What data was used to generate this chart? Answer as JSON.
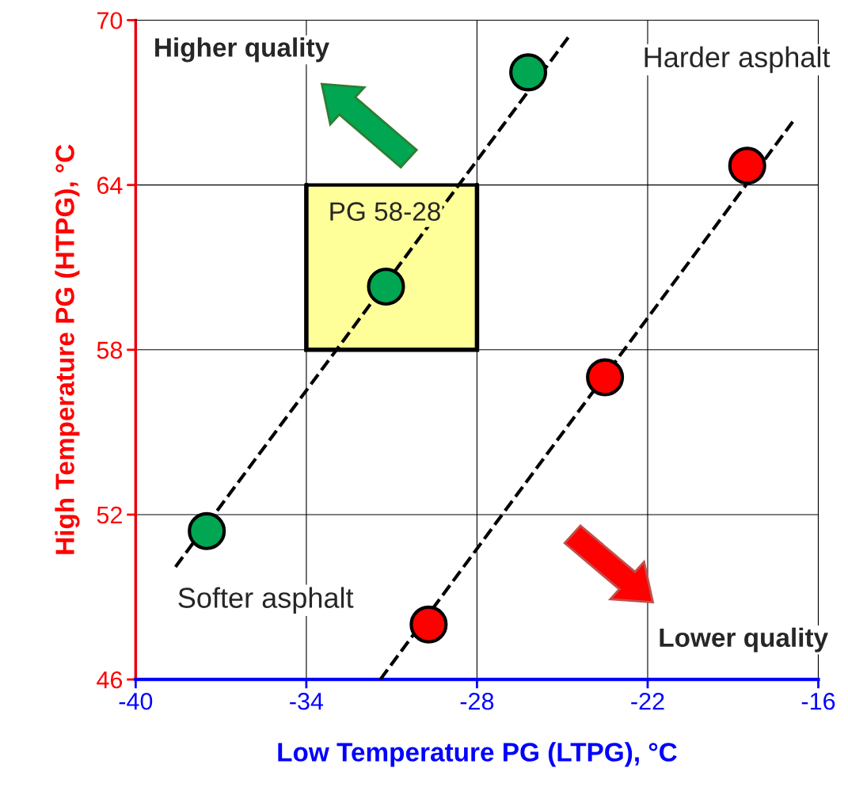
{
  "chart_data": {
    "type": "scatter",
    "xlabel": "Low Temperature PG (LTPG), °C",
    "ylabel": "High Temperature PG (HTPG), °C",
    "xlim": [
      -40,
      -16
    ],
    "xticks": [
      -40,
      -34,
      -28,
      -22,
      -16
    ],
    "ylim": [
      46,
      70
    ],
    "yticks": [
      46,
      52,
      58,
      64,
      70
    ],
    "grid": true,
    "marker": "circle",
    "series": [
      {
        "type": "line",
        "color": "#000000",
        "marker": "none",
        "x": [
          -34,
          -28
        ],
        "values": [
          64,
          64
        ],
        "lower": [
          58,
          58
        ],
        "upper": [
          64,
          64
        ]
      },
      {
        "type": "line",
        "color": "#000000",
        "line_style": "dashed",
        "marker": "none",
        "x": [
          -38.6,
          -24.7
        ],
        "values": [
          50.1,
          69.5
        ]
      },
      {
        "type": "line",
        "color": "#000000",
        "line_style": "dashed",
        "marker": "none",
        "x": [
          -31.4,
          -16.9
        ],
        "values": [
          46.0,
          66.3
        ]
      },
      {
        "color": "#00a651",
        "x": [
          -37.5,
          -31.2,
          -26.2
        ],
        "values": [
          51.4,
          60.3,
          68.1
        ]
      },
      {
        "color": "#ff0000",
        "x": [
          -29.7,
          -23.5,
          -18.5
        ],
        "values": [
          48.0,
          57.0,
          64.7
        ]
      }
    ],
    "annotations": [
      {
        "text": "PG 58-28",
        "x": -34,
        "y": 64
      },
      "Higher quality",
      "Harder asphalt",
      "Softer asphalt",
      "Lower quality"
    ]
  }
}
